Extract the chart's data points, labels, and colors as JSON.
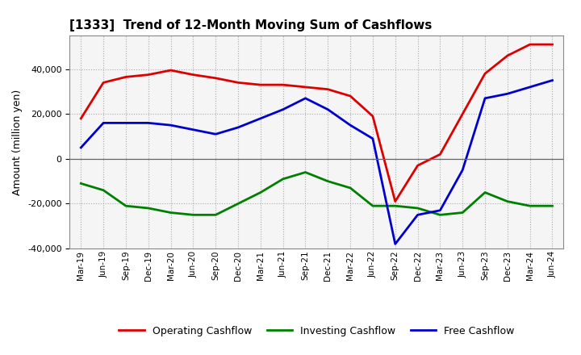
{
  "title": "[1333]  Trend of 12-Month Moving Sum of Cashflows",
  "ylabel": "Amount (million yen)",
  "xlabels": [
    "Mar-19",
    "Jun-19",
    "Sep-19",
    "Dec-19",
    "Mar-20",
    "Jun-20",
    "Sep-20",
    "Dec-20",
    "Mar-21",
    "Jun-21",
    "Sep-21",
    "Dec-21",
    "Mar-22",
    "Jun-22",
    "Sep-22",
    "Dec-22",
    "Mar-23",
    "Jun-23",
    "Sep-23",
    "Dec-23",
    "Mar-24",
    "Jun-24"
  ],
  "operating": [
    18000,
    34000,
    36500,
    37500,
    39500,
    37500,
    36000,
    34000,
    33000,
    33000,
    32000,
    31000,
    28000,
    19000,
    -19000,
    -3000,
    2000,
    20000,
    38000,
    46000,
    51000,
    51000
  ],
  "investing": [
    -11000,
    -14000,
    -21000,
    -22000,
    -24000,
    -25000,
    -25000,
    -20000,
    -15000,
    -9000,
    -6000,
    -10000,
    -13000,
    -21000,
    -21000,
    -22000,
    -25000,
    -24000,
    -15000,
    -19000,
    -21000,
    -21000
  ],
  "free": [
    5000,
    16000,
    16000,
    16000,
    15000,
    13000,
    11000,
    14000,
    18000,
    22000,
    27000,
    22000,
    15000,
    9000,
    -38000,
    -25000,
    -23000,
    -5000,
    27000,
    29000,
    32000,
    35000
  ],
  "operating_color": "#dd0000",
  "investing_color": "#008000",
  "free_color": "#0000cc",
  "ylim": [
    -40000,
    55000
  ],
  "yticks": [
    -40000,
    -20000,
    0,
    20000,
    40000
  ],
  "background_color": "#ffffff",
  "plot_bg_color": "#f5f5f5",
  "grid_color": "#aaaaaa"
}
